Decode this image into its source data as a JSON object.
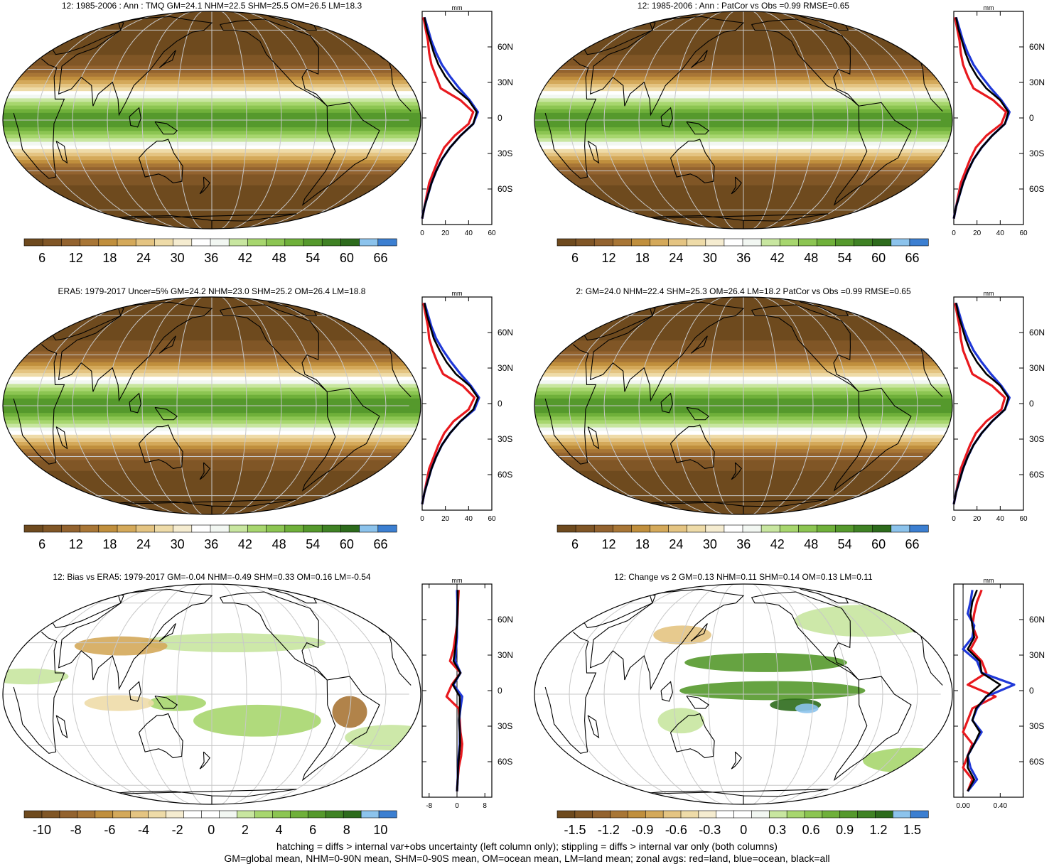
{
  "colors": {
    "abs_palette": [
      "#6e4a1e",
      "#805626",
      "#93632f",
      "#a87636",
      "#c08f3d",
      "#d4a95a",
      "#e4c482",
      "#eedba8",
      "#f5ecd0",
      "#ffffff",
      "#f2f7f2",
      "#c8e6a0",
      "#a7d66e",
      "#8cc552",
      "#6fb03a",
      "#55992c",
      "#3f8224",
      "#2d6b1c",
      "#8cc3ec",
      "#3c7fd1"
    ],
    "diff_palette": [
      "#6e4a1e",
      "#805626",
      "#93632f",
      "#a87636",
      "#c08f3d",
      "#d4a95a",
      "#e4c482",
      "#eedba8",
      "#f5ecd0",
      "#ffffff",
      "#ffffff",
      "#f2f7f2",
      "#c8e6a0",
      "#a7d66e",
      "#8cc552",
      "#6fb03a",
      "#55992c",
      "#3f8224",
      "#2d6b1c",
      "#8cc3ec",
      "#3c7fd1"
    ],
    "zonal_land": "#e8191e",
    "zonal_ocean": "#1f38d8",
    "zonal_all": "#000000",
    "coast": "#000000",
    "grid": "#c8c8c8"
  },
  "caption": {
    "line1": "hatching = diffs > internal var+obs uncertainty (left column only); stippling = diffs > internal var only (both columns)",
    "line2": "GM=global mean, NHM=0-90N mean, SHM=0-90S mean, OM=ocean mean, LM=land mean; zonal avgs: red=land, blue=ocean, black=all"
  },
  "chart_data": [
    {
      "type": "heatmap",
      "title": "12: 1985-2006 : Ann : TMQ GM=24.1 NHM=22.5 SHM=25.5 OM=26.5 LM=18.3",
      "colorbar_ticks": [
        "6",
        "12",
        "18",
        "24",
        "30",
        "36",
        "42",
        "48",
        "54",
        "60",
        "66"
      ],
      "palette": "abs",
      "zonal": {
        "units": "mm",
        "xlim": [
          0,
          60
        ],
        "xticks": [
          "0",
          "20",
          "40",
          "60"
        ],
        "ylim": [
          -90,
          90
        ],
        "yticks": [
          "60N",
          "30N",
          "0",
          "30S",
          "60S"
        ],
        "lat": [
          -85,
          -75,
          -65,
          -55,
          -45,
          -35,
          -25,
          -15,
          -5,
          5,
          15,
          25,
          35,
          45,
          55,
          65,
          75,
          85
        ],
        "land": [
          0,
          2,
          4,
          6,
          10,
          14,
          19,
          28,
          40,
          44,
          33,
          16,
          12,
          8,
          6,
          5,
          3,
          1
        ],
        "ocean": [
          0,
          2,
          5,
          8,
          12,
          17,
          24,
          33,
          44,
          48,
          41,
          32,
          24,
          17,
          12,
          8,
          5,
          2
        ],
        "all": [
          0,
          2,
          5,
          8,
          12,
          17,
          24,
          33,
          44,
          47,
          40,
          28,
          20,
          14,
          10,
          7,
          4,
          2
        ]
      }
    },
    {
      "type": "heatmap",
      "title": "12: 1985-2006 : Ann : PatCor vs Obs =0.99 RMSE=0.65",
      "colorbar_ticks": [
        "6",
        "12",
        "18",
        "24",
        "30",
        "36",
        "42",
        "48",
        "54",
        "60",
        "66"
      ],
      "palette": "abs",
      "zonal": {
        "units": "mm",
        "xlim": [
          0,
          60
        ],
        "xticks": [
          "0",
          "20",
          "40",
          "60"
        ],
        "ylim": [
          -90,
          90
        ],
        "yticks": [
          "60N",
          "30N",
          "0",
          "30S",
          "60S"
        ],
        "lat": [
          -85,
          -75,
          -65,
          -55,
          -45,
          -35,
          -25,
          -15,
          -5,
          5,
          15,
          25,
          35,
          45,
          55,
          65,
          75,
          85
        ],
        "land": [
          0,
          2,
          4,
          6,
          10,
          14,
          19,
          28,
          41,
          45,
          34,
          17,
          12,
          8,
          6,
          5,
          3,
          1
        ],
        "ocean": [
          0,
          2,
          5,
          8,
          12,
          17,
          24,
          33,
          44,
          48,
          41,
          32,
          24,
          17,
          12,
          8,
          5,
          2
        ],
        "all": [
          0,
          2,
          5,
          8,
          12,
          17,
          24,
          33,
          44,
          47,
          40,
          28,
          20,
          14,
          10,
          7,
          4,
          2
        ]
      }
    },
    {
      "type": "heatmap",
      "title": "ERA5: 1979-2017 Uncer=5% GM=24.2 NHM=23.0 SHM=25.2 OM=26.4 LM=18.8",
      "colorbar_ticks": [
        "6",
        "12",
        "18",
        "24",
        "30",
        "36",
        "42",
        "48",
        "54",
        "60",
        "66"
      ],
      "palette": "abs",
      "zonal": {
        "units": "mm",
        "xlim": [
          0,
          60
        ],
        "xticks": [
          "0",
          "20",
          "40",
          "60"
        ],
        "ylim": [
          -90,
          90
        ],
        "yticks": [
          "60N",
          "30N",
          "0",
          "30S",
          "60S"
        ],
        "lat": [
          -85,
          -75,
          -65,
          -55,
          -45,
          -35,
          -25,
          -15,
          -5,
          5,
          15,
          25,
          35,
          45,
          55,
          65,
          75,
          85
        ],
        "land": [
          0,
          2,
          4,
          6,
          10,
          14,
          19,
          27,
          40,
          45,
          35,
          18,
          13,
          9,
          6,
          5,
          3,
          1
        ],
        "ocean": [
          0,
          2,
          5,
          8,
          12,
          17,
          24,
          33,
          45,
          49,
          42,
          33,
          25,
          18,
          12,
          8,
          5,
          2
        ],
        "all": [
          0,
          2,
          5,
          8,
          12,
          17,
          24,
          33,
          44,
          48,
          41,
          29,
          21,
          15,
          10,
          7,
          4,
          2
        ]
      }
    },
    {
      "type": "heatmap",
      "title": "2: GM=24.0 NHM=22.4 SHM=25.3 OM=26.4 LM=18.2 PatCor vs Obs =0.99 RMSE=0.65",
      "colorbar_ticks": [
        "6",
        "12",
        "18",
        "24",
        "30",
        "36",
        "42",
        "48",
        "54",
        "60",
        "66"
      ],
      "palette": "abs",
      "zonal": {
        "units": "mm",
        "xlim": [
          0,
          60
        ],
        "xticks": [
          "0",
          "20",
          "40",
          "60"
        ],
        "ylim": [
          -90,
          90
        ],
        "yticks": [
          "60N",
          "30N",
          "0",
          "30S",
          "60S"
        ],
        "lat": [
          -85,
          -75,
          -65,
          -55,
          -45,
          -35,
          -25,
          -15,
          -5,
          5,
          15,
          25,
          35,
          45,
          55,
          65,
          75,
          85
        ],
        "land": [
          0,
          2,
          4,
          6,
          10,
          14,
          19,
          28,
          41,
          44,
          33,
          16,
          12,
          8,
          6,
          5,
          3,
          1
        ],
        "ocean": [
          0,
          2,
          5,
          8,
          12,
          17,
          24,
          33,
          44,
          48,
          41,
          32,
          24,
          17,
          12,
          8,
          5,
          2
        ],
        "all": [
          0,
          2,
          5,
          8,
          12,
          17,
          24,
          33,
          44,
          47,
          40,
          28,
          20,
          14,
          10,
          7,
          4,
          2
        ]
      }
    },
    {
      "type": "heatmap",
      "title": "12: Bias vs ERA5: 1979-2017 GM=-0.04 NHM=-0.49 SHM=0.33 OM=0.16 LM=-0.54",
      "colorbar_ticks": [
        "-10",
        "-8",
        "-6",
        "-4",
        "-2",
        "0",
        "2",
        "4",
        "6",
        "8",
        "10"
      ],
      "palette": "diff",
      "zonal": {
        "units": "mm",
        "xlim": [
          -10,
          10
        ],
        "xticks": [
          "-8",
          "0",
          "8"
        ],
        "ylim": [
          -90,
          90
        ],
        "yticks": [
          "60N",
          "30N",
          "0",
          "30S",
          "60S"
        ],
        "lat": [
          -85,
          -75,
          -65,
          -55,
          -45,
          -35,
          -25,
          -15,
          -5,
          5,
          15,
          25,
          35,
          45,
          55,
          65,
          75,
          85
        ],
        "land": [
          0,
          0.2,
          0.5,
          1.2,
          1.5,
          1,
          0.8,
          0.5,
          -3,
          -1.5,
          1,
          -2,
          -1,
          -0.5,
          0,
          0.2,
          0.3,
          0.5
        ],
        "ocean": [
          0,
          0.2,
          0.3,
          0.5,
          0.8,
          0.8,
          0.6,
          1,
          1.5,
          -1,
          1,
          -0.5,
          -0.3,
          0,
          0,
          0.1,
          0.1,
          0
        ],
        "all": [
          0,
          0.2,
          0.3,
          0.6,
          0.9,
          0.8,
          0.6,
          0.8,
          0.8,
          -1.2,
          1,
          -1,
          -0.5,
          -0.2,
          0,
          0.1,
          0.2,
          0.2
        ]
      }
    },
    {
      "type": "heatmap",
      "title": "12: Change vs 2 GM=0.13 NHM=0.11 SHM=0.14 OM=0.13 LM=0.11",
      "colorbar_ticks": [
        "-1.5",
        "-1.2",
        "-0.9",
        "-0.6",
        "-0.3",
        "0",
        "0.3",
        "0.6",
        "0.9",
        "1.2",
        "1.5"
      ],
      "palette": "diff",
      "zonal": {
        "units": "mm",
        "xlim": [
          -0.1,
          0.65
        ],
        "xticks": [
          "0.00",
          "0.40"
        ],
        "ylim": [
          -90,
          90
        ],
        "yticks": [
          "60N",
          "30N",
          "0",
          "30S",
          "60S"
        ],
        "lat": [
          -85,
          -75,
          -65,
          -55,
          -45,
          -35,
          -25,
          -15,
          -5,
          5,
          15,
          25,
          35,
          45,
          55,
          65,
          75,
          85
        ],
        "land": [
          0.05,
          0.1,
          0,
          0.05,
          0.1,
          0.0,
          0.05,
          0.1,
          0.35,
          0.05,
          0.25,
          0.2,
          0.08,
          0.15,
          0.1,
          0.12,
          0.15,
          0.2
        ],
        "ocean": [
          0.05,
          0.15,
          0.08,
          0.05,
          0.12,
          0.2,
          0.1,
          0.15,
          0.25,
          0.55,
          0.2,
          0.15,
          0.0,
          0.1,
          0.12,
          0.05,
          0.08,
          0.1
        ],
        "all": [
          0.05,
          0.12,
          0.05,
          0.05,
          0.12,
          0.18,
          0.1,
          0.14,
          0.25,
          0.4,
          0.2,
          0.18,
          0.05,
          0.12,
          0.1,
          0.08,
          0.1,
          0.15
        ]
      }
    }
  ]
}
